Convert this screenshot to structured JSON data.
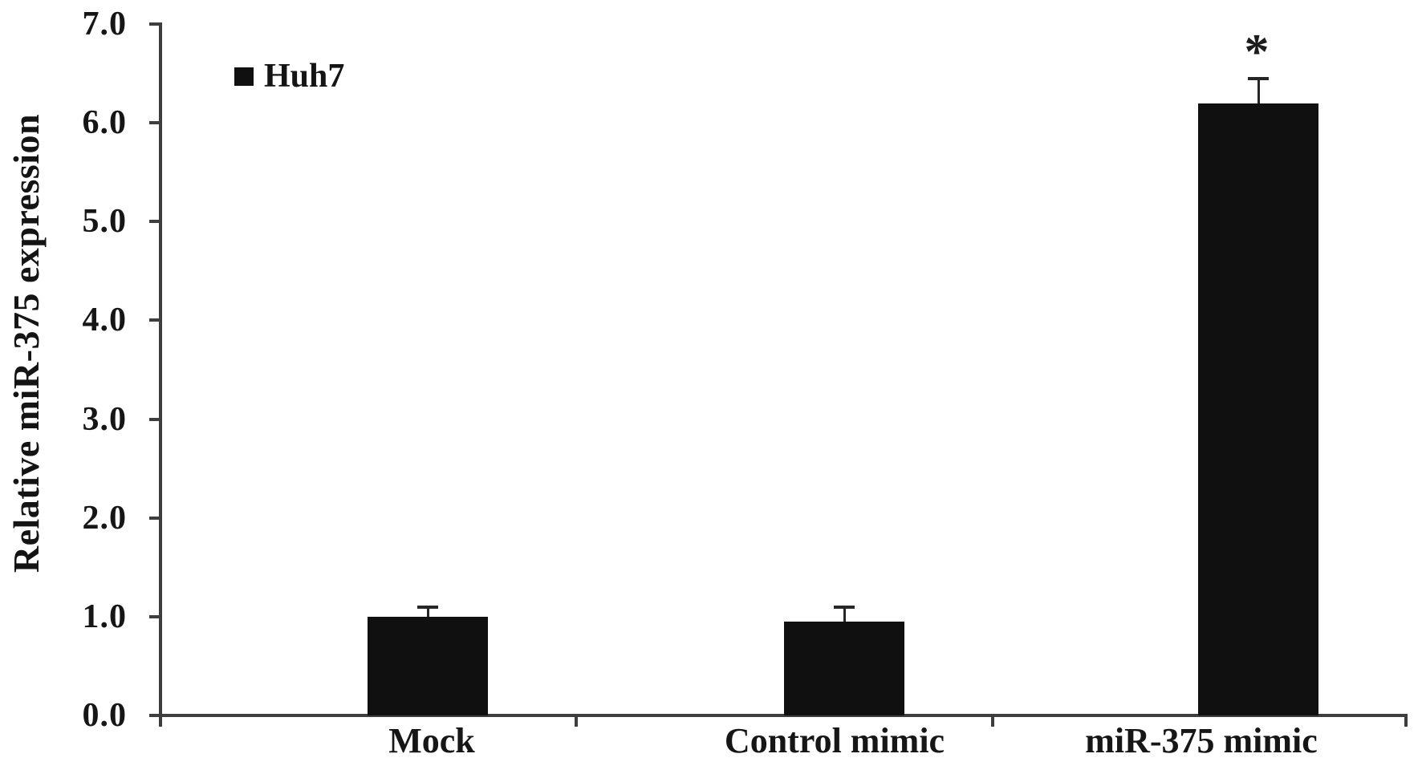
{
  "chart_data": {
    "type": "bar",
    "title": "",
    "categories": [
      "Mock",
      "Control mimic",
      "miR-375 mimic"
    ],
    "series": [
      {
        "name": "Huh7",
        "values": [
          1.0,
          0.95,
          6.2
        ],
        "errors": [
          0.1,
          0.15,
          0.25
        ]
      }
    ],
    "annotations": [
      {
        "category_index": 2,
        "text": "*"
      }
    ],
    "xlabel": "",
    "ylabel": "Relative miR-375 expression",
    "ylim": [
      0.0,
      7.0
    ],
    "y_ticks": [
      "0.0",
      "1.0",
      "2.0",
      "3.0",
      "4.0",
      "5.0",
      "6.0",
      "7.0"
    ],
    "grid": false,
    "legend_position": "upper-left-inside",
    "bar_color": "#101010",
    "error_bar_color": "#262626",
    "axis_color": "#3e3e3e",
    "background_color": "#ffffff"
  }
}
